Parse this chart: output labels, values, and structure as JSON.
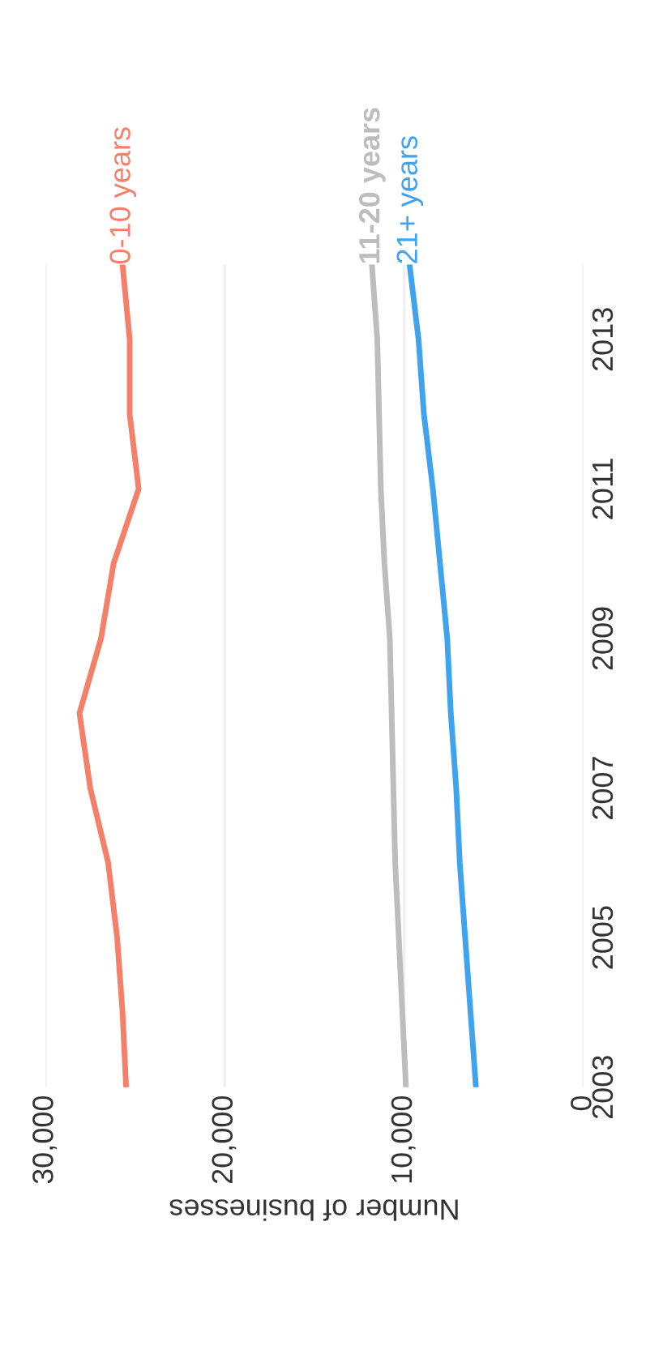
{
  "chart_data": {
    "type": "line",
    "orientation": "horizontal",
    "xlabel": "Number of businesses",
    "x": [
      2003,
      2004,
      2005,
      2006,
      2007,
      2008,
      2009,
      2010,
      2011,
      2012,
      2013,
      2014
    ],
    "series": [
      {
        "name": "0-10 years",
        "color": "#f4806a",
        "values": [
          25500,
          25700,
          26000,
          26500,
          27500,
          28100,
          26900,
          26200,
          24800,
          25300,
          25300,
          25700
        ]
      },
      {
        "name": "11-20 years",
        "color": "#bdbdbd",
        "values": [
          9900,
          10100,
          10300,
          10500,
          10600,
          10700,
          10800,
          11100,
          11300,
          11400,
          11500,
          11800
        ]
      },
      {
        "name": "21+ years",
        "color": "#3fa3ee",
        "values": [
          6000,
          6300,
          6600,
          6900,
          7100,
          7400,
          7600,
          8000,
          8400,
          8900,
          9200,
          9700
        ]
      }
    ],
    "ylim": [
      2003,
      2014
    ],
    "yticks": [
      2003,
      2005,
      2007,
      2009,
      2011,
      2013
    ],
    "xlim": [
      30000,
      0
    ],
    "xticks": [
      {
        "value": 0,
        "label": "0"
      },
      {
        "value": 10000,
        "label": "10,000"
      },
      {
        "value": 20000,
        "label": "20,000"
      },
      {
        "value": 30000,
        "label": "30,000"
      }
    ],
    "grid": "x",
    "legend": false
  }
}
